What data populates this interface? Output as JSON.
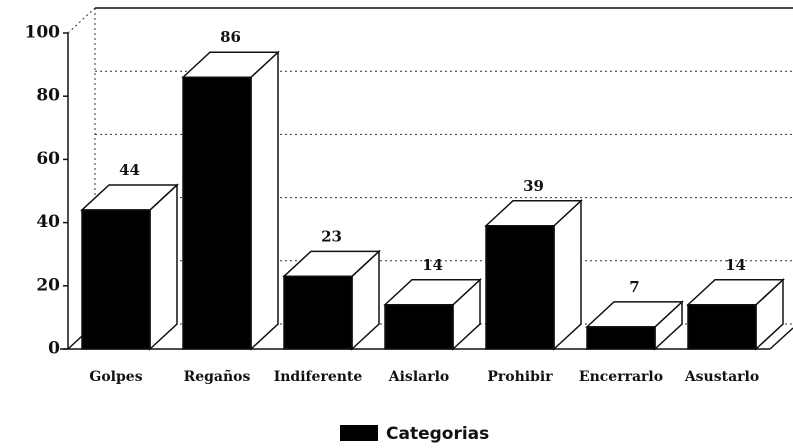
{
  "chart_data": {
    "type": "bar3d",
    "categories": [
      "Golpes",
      "Regaños",
      "Indiferente",
      "Aislarlo",
      "Prohibir",
      "Encerrarlo",
      "Asustarlo"
    ],
    "series": [
      {
        "name": "Categorias",
        "color": "#000000",
        "values": [
          44,
          86,
          23,
          14,
          39,
          7,
          14
        ]
      }
    ],
    "ylim": [
      0,
      100
    ],
    "yticks": [
      0,
      20,
      40,
      60,
      80,
      100
    ],
    "grid": true
  }
}
